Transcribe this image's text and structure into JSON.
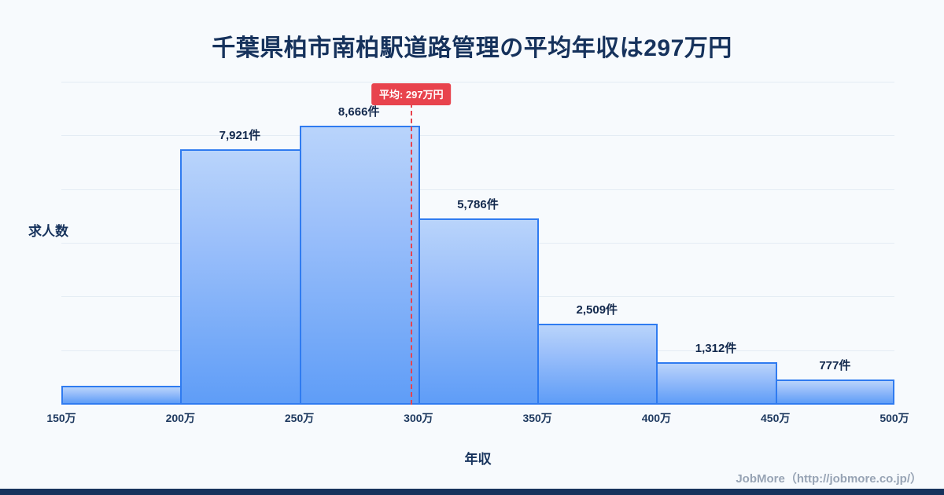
{
  "page": {
    "title": "千葉県柏市南柏駅道路管理の平均年収は297万円",
    "watermark": "JobMore（http://jobmore.co.jp/）"
  },
  "chart_data": {
    "type": "bar",
    "title": "千葉県柏市南柏駅道路管理の平均年収は297万円",
    "xlabel": "年収",
    "ylabel": "求人数",
    "x_ticks": [
      "150万",
      "200万",
      "250万",
      "300万",
      "350万",
      "400万",
      "450万",
      "500万"
    ],
    "x_range_man_yen": [
      150,
      500
    ],
    "ylim": [
      0,
      10000
    ],
    "grid": true,
    "legend": false,
    "bars": [
      {
        "bin": "150万-200万",
        "value": 590,
        "label": ""
      },
      {
        "bin": "200万-250万",
        "value": 7921,
        "label": "7,921件"
      },
      {
        "bin": "250万-300万",
        "value": 8666,
        "label": "8,666件"
      },
      {
        "bin": "300万-350万",
        "value": 5786,
        "label": "5,786件"
      },
      {
        "bin": "350万-400万",
        "value": 2509,
        "label": "2,509件"
      },
      {
        "bin": "400万-450万",
        "value": 1312,
        "label": "1,312件"
      },
      {
        "bin": "450万-500万",
        "value": 777,
        "label": "777件"
      }
    ],
    "average_line": {
      "value_man_yen": 297,
      "label": "平均: 297万円"
    }
  },
  "colors": {
    "background": "#f7fafd",
    "title": "#16325c",
    "bar_fill_top": "#b9d4fb",
    "bar_fill_bottom": "#5f9df7",
    "bar_border": "#2f7bf0",
    "average_red": "#e8434d",
    "gridline": "#e4ecf4",
    "watermark": "#98a4b5",
    "footer_strip": "#16325c"
  }
}
